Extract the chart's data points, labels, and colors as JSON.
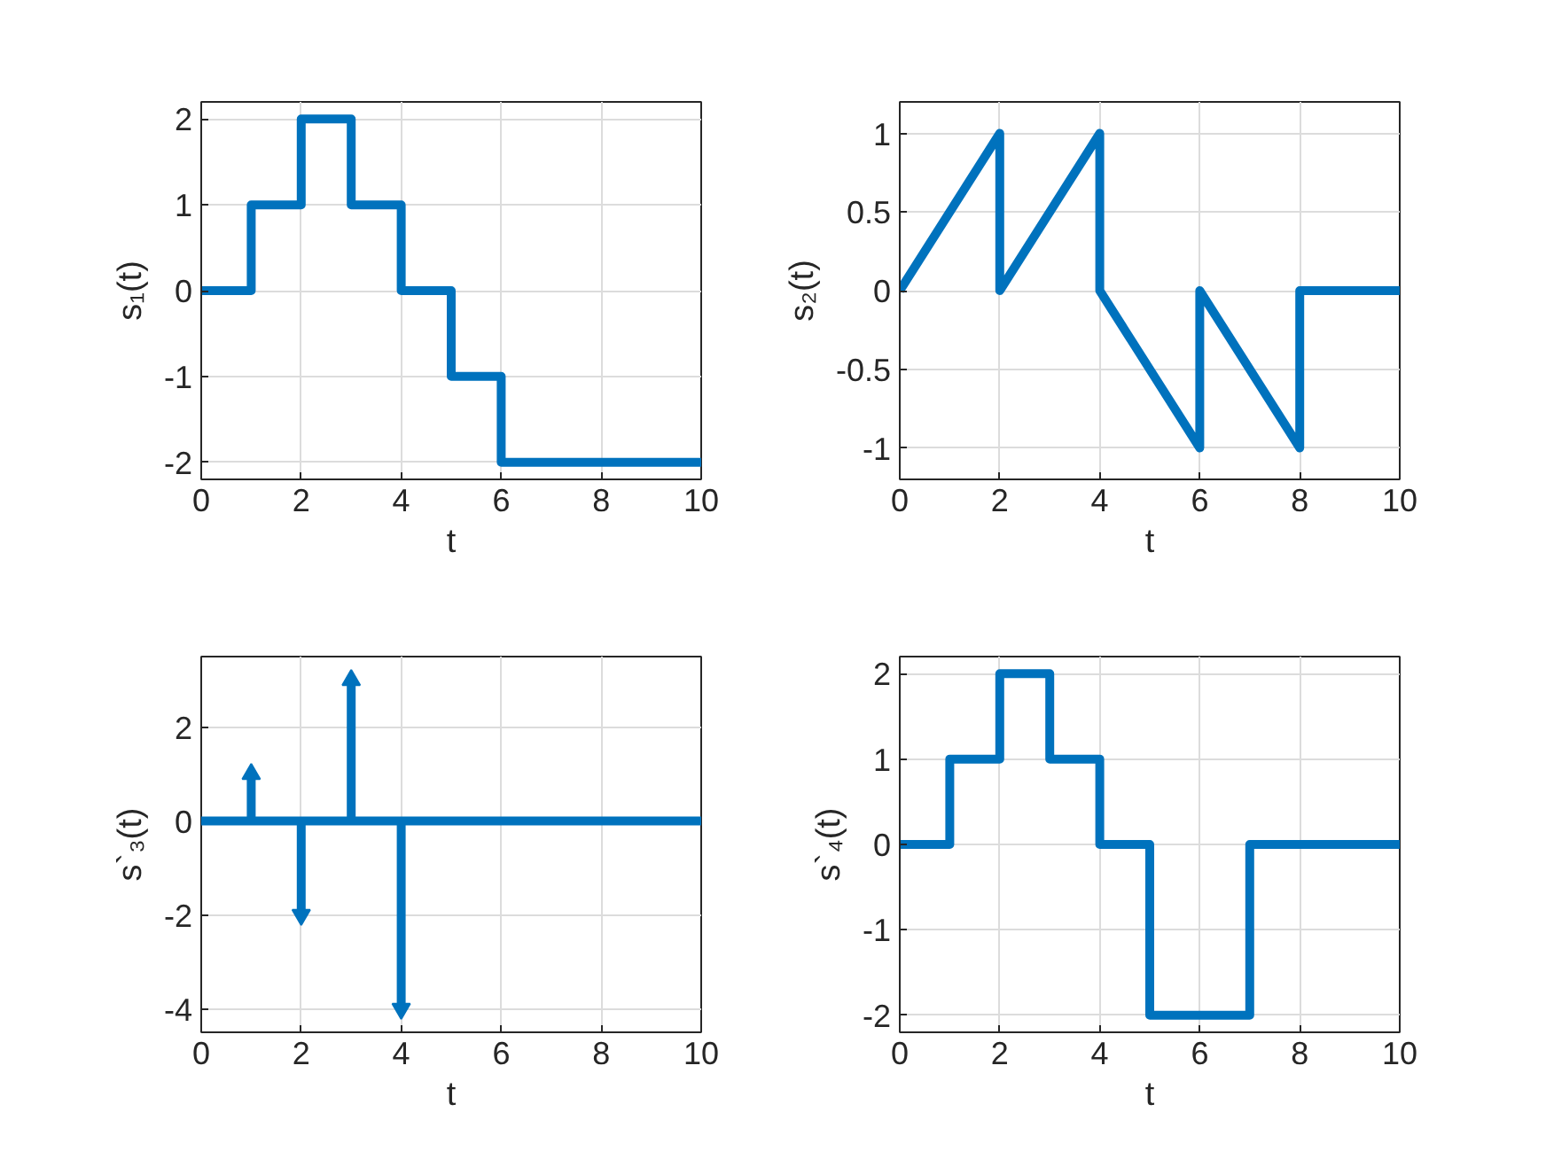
{
  "chart_data": [
    {
      "type": "line",
      "xlabel": "t",
      "ylabel": "s₁(t)",
      "x": [
        0,
        1,
        1,
        2,
        2,
        3,
        3,
        4,
        4,
        5,
        5,
        6,
        6,
        10
      ],
      "values": [
        0,
        0,
        1,
        1,
        2,
        2,
        1,
        1,
        0,
        0,
        -1,
        -1,
        -2,
        -2
      ],
      "color": "#0072bd",
      "xlim": [
        0,
        10
      ],
      "ylim": [
        -2.2,
        2.2
      ],
      "xticks": [
        0,
        2,
        4,
        6,
        8,
        10
      ],
      "yticks": [
        -2,
        -1,
        0,
        1,
        2
      ],
      "grid": true,
      "line_style": "solid"
    },
    {
      "type": "line",
      "xlabel": "t",
      "ylabel": "s₂(t)",
      "x": [
        0,
        2,
        2,
        4,
        4,
        6,
        6,
        8,
        8,
        10
      ],
      "values": [
        0,
        1,
        0,
        1,
        0,
        -1,
        0,
        -1,
        0,
        0
      ],
      "color": "#0072bd",
      "xlim": [
        0,
        10
      ],
      "ylim": [
        -1.2,
        1.2
      ],
      "xticks": [
        0,
        2,
        4,
        6,
        8,
        10
      ],
      "yticks": [
        -1,
        -0.5,
        0,
        0.5,
        1
      ],
      "grid": true,
      "line_style": "solid"
    },
    {
      "type": "lollipop",
      "xlabel": "t",
      "ylabel": "s`₃(t)",
      "x": [
        1,
        2,
        3,
        4
      ],
      "values": [
        1,
        -2,
        3,
        -4
      ],
      "color": "#0072bd",
      "marker": "triangle",
      "ref_lines": [
        {
          "axis": "y",
          "value": 0,
          "color": "#0072bd"
        }
      ],
      "xlim": [
        0,
        10
      ],
      "ylim": [
        -4.5,
        3.5
      ],
      "xticks": [
        0,
        2,
        4,
        6,
        8,
        10
      ],
      "yticks": [
        -4,
        -2,
        0,
        2
      ],
      "grid": true
    },
    {
      "type": "line",
      "xlabel": "t",
      "ylabel": "s`₄(t)",
      "x": [
        0,
        1,
        1,
        2,
        2,
        3,
        3,
        4,
        4,
        5,
        5,
        7,
        7,
        10
      ],
      "values": [
        0,
        0,
        1,
        1,
        2,
        2,
        1,
        1,
        0,
        0,
        -2,
        -2,
        0,
        0
      ],
      "color": "#0072bd",
      "xlim": [
        0,
        10
      ],
      "ylim": [
        -2.2,
        2.2
      ],
      "xticks": [
        0,
        2,
        4,
        6,
        8,
        10
      ],
      "yticks": [
        -2,
        -1,
        0,
        1,
        2
      ],
      "grid": true,
      "line_style": "solid"
    }
  ]
}
